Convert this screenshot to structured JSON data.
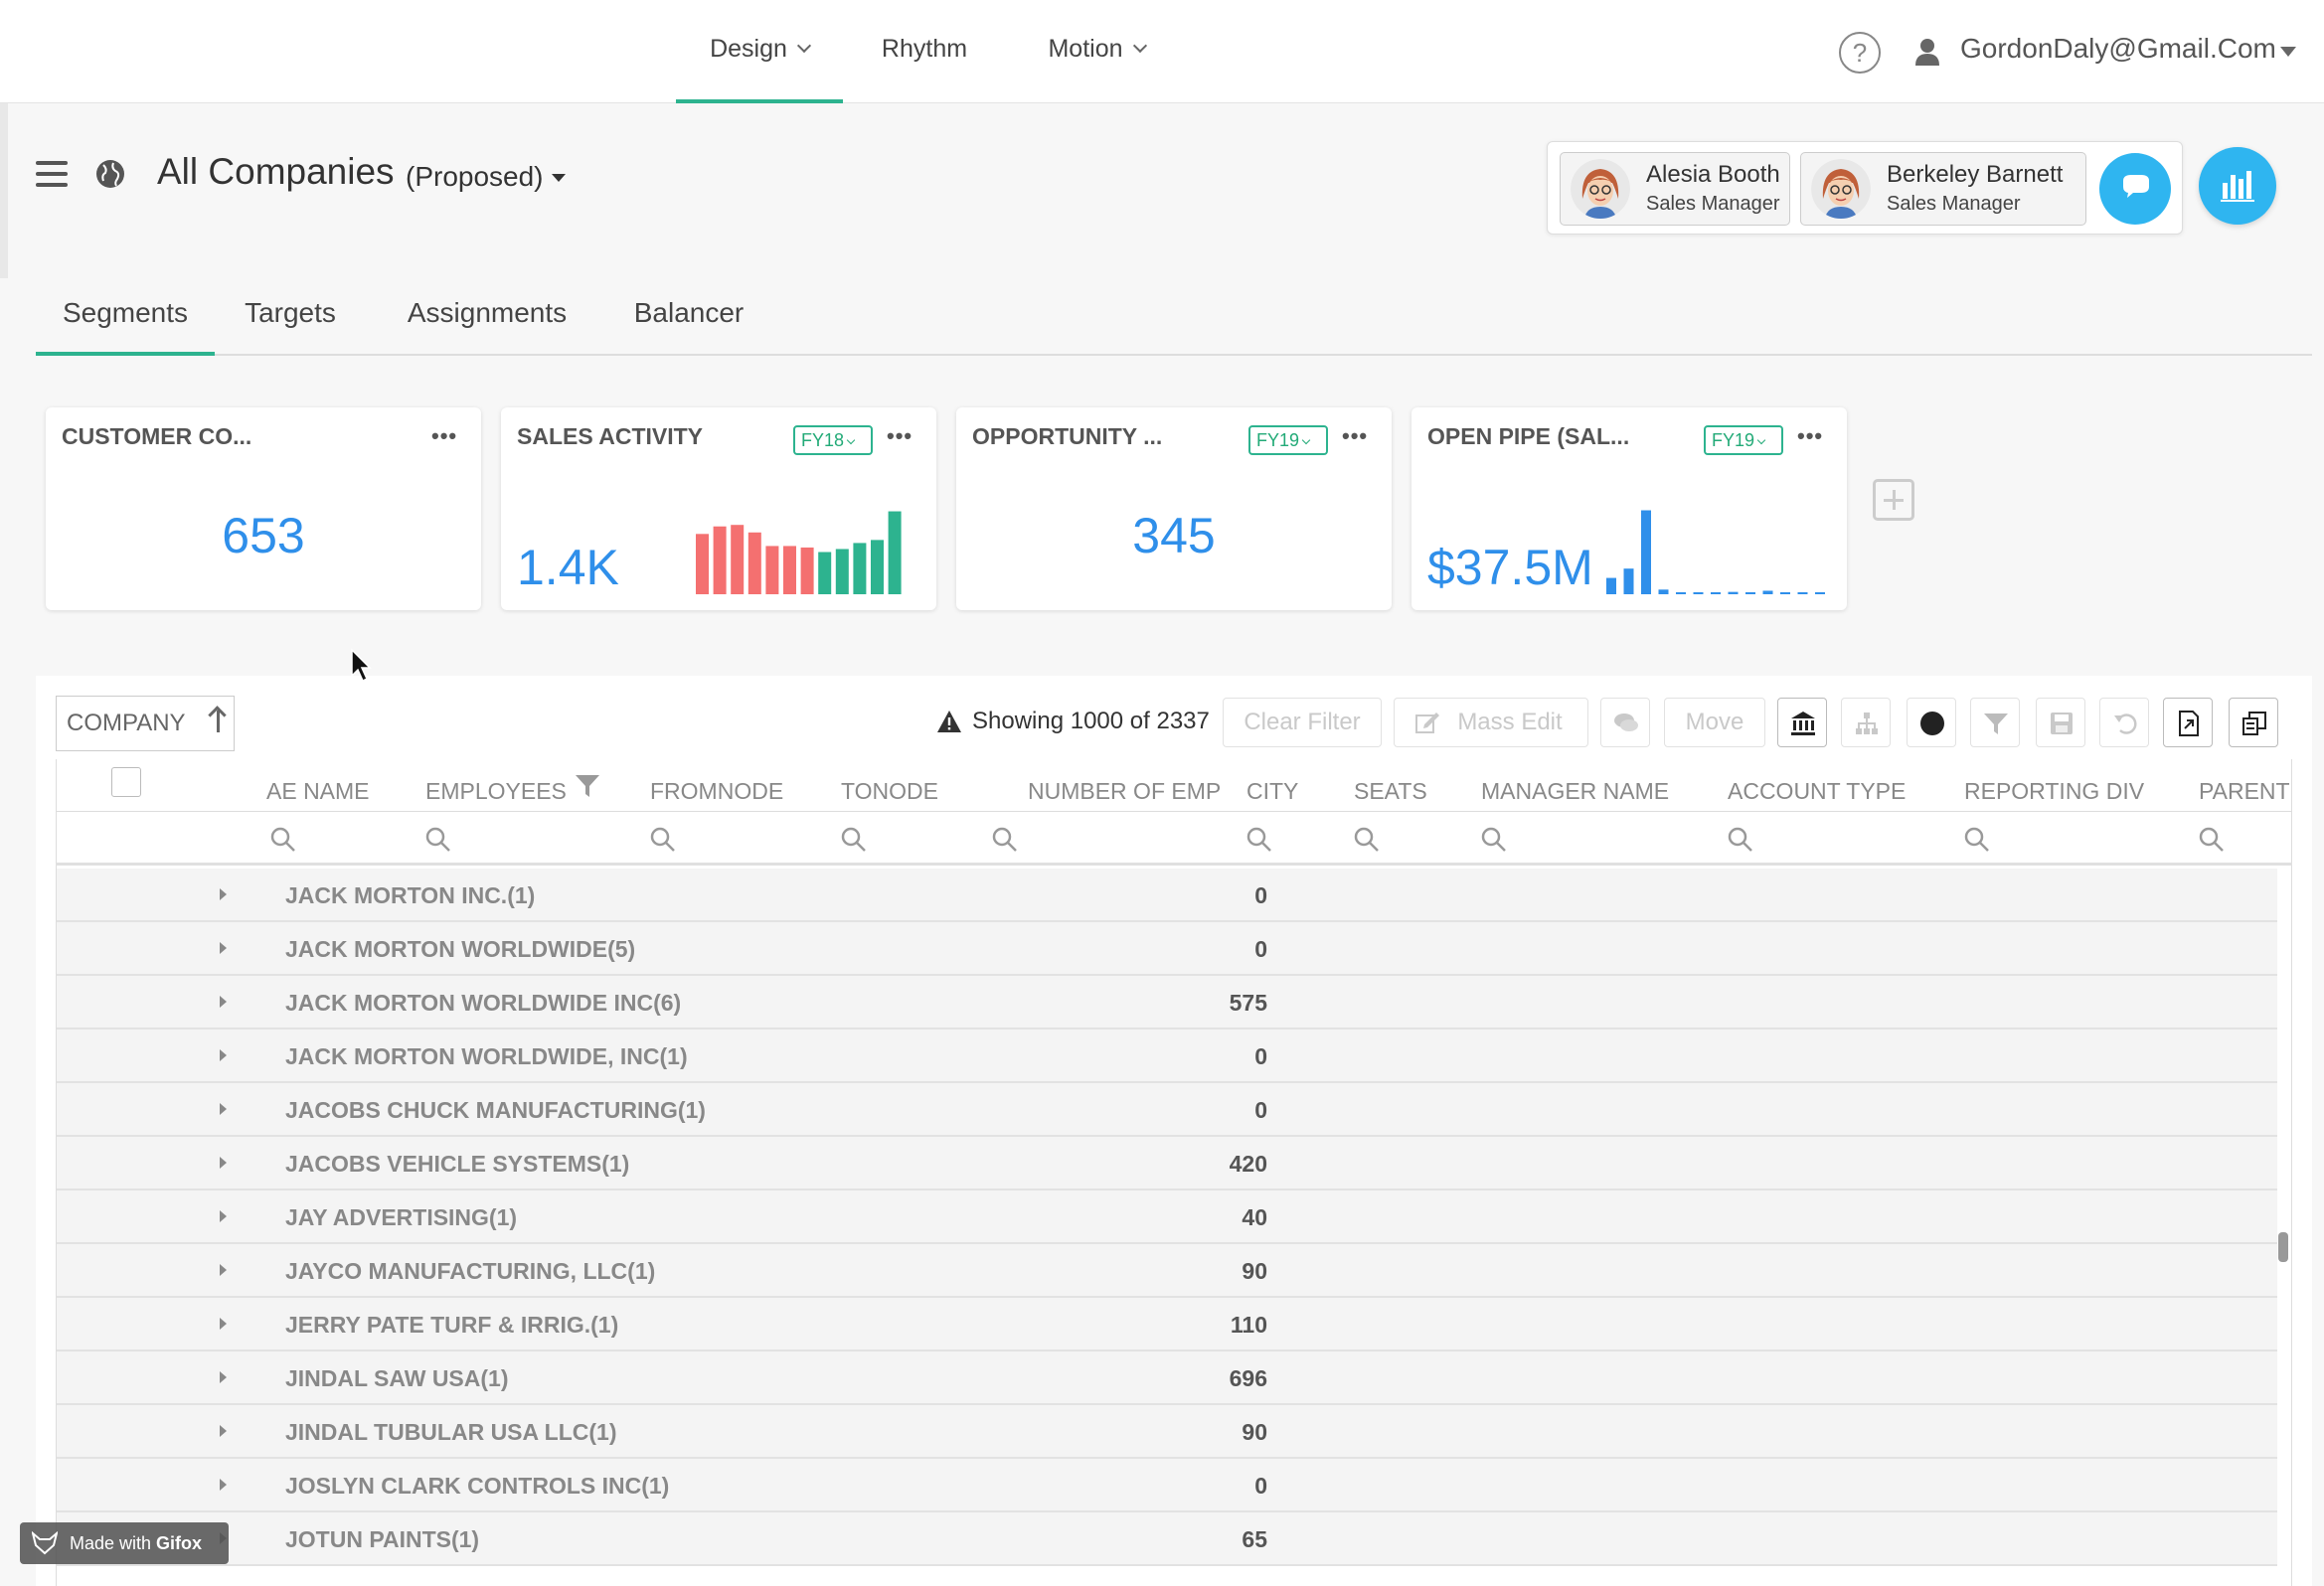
{
  "topnav": {
    "items": [
      {
        "label": "Design",
        "active": true
      },
      {
        "label": "Rhythm",
        "active": false
      },
      {
        "label": "Motion",
        "active": false
      }
    ],
    "help_glyph": "?",
    "user_email": "GordonDaly@Gmail.Com"
  },
  "header": {
    "title": "All Companies",
    "scenario": "(Proposed)",
    "managers": [
      {
        "name": "Alesia Booth",
        "role": "Sales Manager"
      },
      {
        "name": "Berkeley Barnett",
        "role": "Sales Manager"
      }
    ]
  },
  "tabs": [
    {
      "label": "Segments",
      "active": true
    },
    {
      "label": "Targets",
      "active": false
    },
    {
      "label": "Assignments",
      "active": false
    },
    {
      "label": "Balancer",
      "active": false
    }
  ],
  "kpis": [
    {
      "title": "CUSTOMER CO...",
      "value": "653",
      "fy": ""
    },
    {
      "title": "SALES ACTIVITY",
      "value": "1.4K",
      "fy": "FY18"
    },
    {
      "title": "OPPORTUNITY ...",
      "value": "345",
      "fy": "FY19"
    },
    {
      "title": "OPEN PIPE (SAL...",
      "value": "$37.5M",
      "fy": "FY19"
    }
  ],
  "chart_data": [
    {
      "type": "bar",
      "title": "SALES ACTIVITY",
      "values": [
        40,
        45,
        46,
        41,
        32,
        32,
        31,
        28,
        30,
        34,
        36,
        55
      ],
      "colors": [
        "#f47070",
        "#f47070",
        "#f47070",
        "#f47070",
        "#f47070",
        "#f47070",
        "#f47070",
        "#2db38f",
        "#2db38f",
        "#2db38f",
        "#2db38f",
        "#2db38f"
      ],
      "ylim": [
        0,
        58
      ]
    },
    {
      "type": "bar",
      "title": "OPEN PIPE (SAL...",
      "values": [
        14,
        22,
        72,
        4,
        1,
        1,
        1,
        2,
        1,
        3,
        1,
        1,
        1
      ],
      "color": "#2f8fea",
      "ylim": [
        0,
        75
      ]
    }
  ],
  "grid": {
    "sort_label": "COMPANY",
    "status": "Showing 1000 of 2337",
    "buttons": {
      "clear_filter": "Clear Filter",
      "mass_edit": "Mass Edit",
      "move": "Move"
    },
    "columns": [
      "AE NAME",
      "EMPLOYEES",
      "FROMNODE",
      "TONODE",
      "NUMBER OF EMP",
      "CITY",
      "SEATS",
      "MANAGER NAME",
      "ACCOUNT TYPE",
      "REPORTING DIV",
      "PARENT"
    ],
    "rows": [
      {
        "name": "JACK MORTON INC.(1)",
        "emp": "0"
      },
      {
        "name": "JACK MORTON WORLDWIDE(5)",
        "emp": "0"
      },
      {
        "name": "JACK MORTON WORLDWIDE INC(6)",
        "emp": "575"
      },
      {
        "name": "JACK MORTON WORLDWIDE, INC(1)",
        "emp": "0"
      },
      {
        "name": "JACOBS CHUCK MANUFACTURING(1)",
        "emp": "0"
      },
      {
        "name": "JACOBS VEHICLE SYSTEMS(1)",
        "emp": "420"
      },
      {
        "name": "JAY ADVERTISING(1)",
        "emp": "40"
      },
      {
        "name": "JAYCO MANUFACTURING, LLC(1)",
        "emp": "90"
      },
      {
        "name": "JERRY PATE TURF & IRRIG.(1)",
        "emp": "110"
      },
      {
        "name": "JINDAL SAW USA(1)",
        "emp": "696"
      },
      {
        "name": "JINDAL TUBULAR USA LLC(1)",
        "emp": "90"
      },
      {
        "name": "JOSLYN CLARK CONTROLS INC(1)",
        "emp": "0"
      },
      {
        "name": "JOTUN PAINTS(1)",
        "emp": "65"
      }
    ]
  },
  "watermark": {
    "prefix": "Made with ",
    "brand": "Gifox"
  },
  "colors": {
    "accent": "#2db38f",
    "value_blue": "#2f8fea",
    "bar_red": "#f47070",
    "button_blue": "#2fb5f0"
  }
}
